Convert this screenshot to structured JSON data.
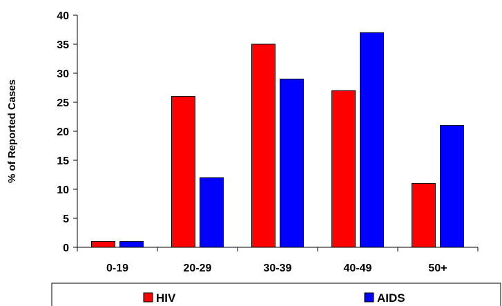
{
  "chart_data": {
    "type": "bar",
    "categories": [
      "0-19",
      "20-29",
      "30-39",
      "40-49",
      "50+"
    ],
    "series": [
      {
        "name": "HIV",
        "color": "#ff0000",
        "values": [
          1,
          26,
          35,
          27,
          11
        ]
      },
      {
        "name": "AIDS",
        "color": "#0000ff",
        "values": [
          1,
          12,
          29,
          37,
          21
        ]
      }
    ],
    "ylabel": "% of Reported Cases",
    "ylim": [
      0,
      40
    ],
    "yticks": [
      0,
      5,
      10,
      15,
      20,
      25,
      30,
      35,
      40
    ],
    "grid": false,
    "legend": "bottom"
  }
}
